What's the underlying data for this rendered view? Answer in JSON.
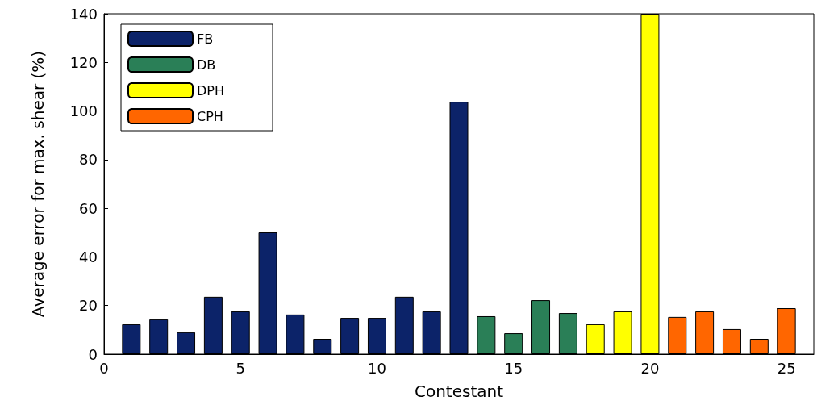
{
  "chart_data": {
    "type": "bar",
    "xlabel": "Contestant",
    "ylabel": "Average error for max. shear (%)",
    "xlim": [
      0,
      26
    ],
    "xticks": [
      0,
      5,
      10,
      15,
      20,
      25
    ],
    "ylim": [
      0,
      140
    ],
    "yticks": [
      0,
      20,
      40,
      60,
      80,
      100,
      120,
      140
    ],
    "grid": false,
    "legend": "top left",
    "series": [
      {
        "name": "FB",
        "color": "#0c2369",
        "x": [
          1,
          2,
          3,
          4,
          5,
          6,
          7,
          8,
          9,
          10,
          11,
          12,
          13
        ],
        "values": [
          12.3,
          14.3,
          9,
          23.6,
          17.6,
          50.1,
          16.3,
          6.3,
          14.9,
          14.9,
          23.6,
          17.6,
          103.8
        ]
      },
      {
        "name": "DB",
        "color": "#2a7f57",
        "x": [
          14,
          15,
          16,
          17
        ],
        "values": [
          15.6,
          8.6,
          22.2,
          16.9
        ]
      },
      {
        "name": "DPH",
        "color": "#ffff00",
        "x": [
          18,
          19,
          20
        ],
        "values": [
          12.3,
          17.6,
          140
        ]
      },
      {
        "name": "CPH",
        "color": "#ff6600",
        "x": [
          21,
          22,
          23,
          24,
          25
        ],
        "values": [
          15.3,
          17.6,
          10.3,
          6.3,
          18.9
        ]
      }
    ]
  }
}
